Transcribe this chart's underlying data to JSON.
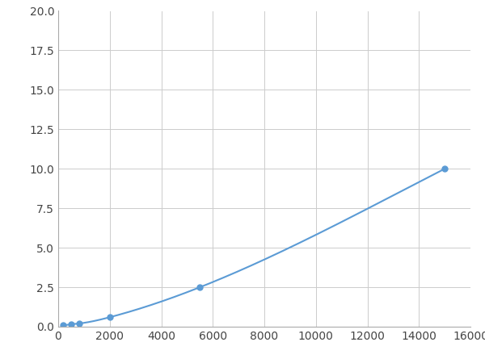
{
  "x": [
    200,
    500,
    800,
    2000,
    5500,
    15000
  ],
  "y": [
    0.08,
    0.15,
    0.2,
    0.6,
    2.5,
    10.0
  ],
  "line_color": "#5B9BD5",
  "marker_color": "#5B9BD5",
  "marker_size": 5,
  "xlim": [
    0,
    16000
  ],
  "ylim": [
    0,
    20
  ],
  "xticks": [
    0,
    2000,
    4000,
    6000,
    8000,
    10000,
    12000,
    14000,
    16000
  ],
  "yticks": [
    0.0,
    2.5,
    5.0,
    7.5,
    10.0,
    12.5,
    15.0,
    17.5,
    20.0
  ],
  "grid_color": "#CCCCCC",
  "background_color": "#ffffff",
  "linewidth": 1.5,
  "tick_fontsize": 10,
  "spine_color": "#AAAAAA"
}
